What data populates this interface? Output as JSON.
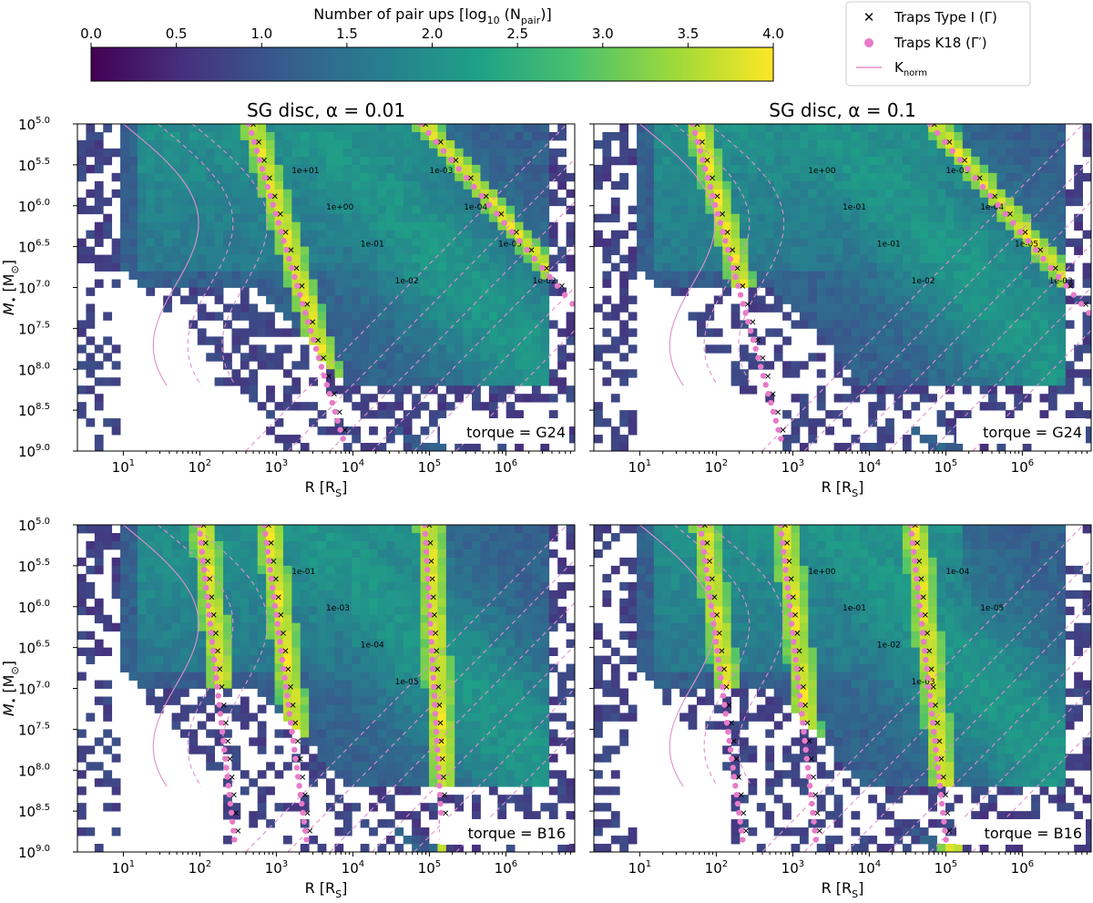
{
  "colorbar": {
    "label": "Number of pair ups [log10 (Npair)]",
    "label_prefix": "Number of pair ups [log",
    "label_sub": "10",
    "label_mid": " (N",
    "label_sub2": "pair",
    "label_suffix": ")]",
    "ticks": [
      "0.0",
      "0.5",
      "1.0",
      "1.5",
      "2.0",
      "2.5",
      "3.0",
      "3.5",
      "4.0"
    ],
    "range": [
      0.0,
      4.0
    ],
    "colors": [
      "#440154",
      "#46327e",
      "#365c8d",
      "#277f8e",
      "#1fa187",
      "#4ac16d",
      "#a0da39",
      "#fde725"
    ]
  },
  "legend": {
    "type1_label": "Traps Type I (Γ)",
    "k18_label": "Traps K18 (Γ′)",
    "knorm_label": "K",
    "knorm_sub": "norm",
    "type1_color": "#cc2222",
    "k18_color": "#e77bc8",
    "knorm_color": "#e090cc"
  },
  "axes": {
    "xlabel_main": "R [R",
    "xlabel_sub": "S",
    "xlabel_end": "]",
    "ylabel_main": "M",
    "ylabel_bullet": "•",
    "ylabel_rest": " [M",
    "ylabel_sub": "⊙",
    "ylabel_end": "]",
    "xticks": [
      "10",
      "10",
      "10",
      "10",
      "10",
      "10"
    ],
    "xtick_exps": [
      "1",
      "2",
      "3",
      "4",
      "5",
      "6"
    ],
    "yticks": [
      "10",
      "10",
      "10",
      "10",
      "10",
      "10",
      "10",
      "10",
      "10"
    ],
    "ytick_exps": [
      "5.0",
      "5.5",
      "6.0",
      "6.5",
      "7.0",
      "7.5",
      "8.0",
      "8.5",
      "9.0"
    ]
  },
  "chart_data": [
    {
      "type": "heatmap",
      "title_prefix": "SG disc, α = ",
      "alpha": "0.01",
      "torque_label": "torque = G24",
      "x_log_range": [
        0.4,
        6.9
      ],
      "y_log_range": [
        5.0,
        9.0
      ],
      "ridges": [
        {
          "log_x_at_top": 2.7,
          "slope": 0.32,
          "kind": "type1"
        },
        {
          "log_x_at_top": 4.95,
          "slope": 0.9,
          "kind": "type1"
        }
      ],
      "contour_labels": [
        "1e+01",
        "1e+00",
        "1e-01",
        "1e-02",
        "1e-03",
        "1e-04",
        "1e-05",
        "1e-02"
      ]
    },
    {
      "type": "heatmap",
      "title_prefix": "SG disc, α = ",
      "alpha": "0.1",
      "torque_label": "torque = G24",
      "x_log_range": [
        0.4,
        6.9
      ],
      "y_log_range": [
        5.0,
        9.0
      ],
      "ridges": [
        {
          "log_x_at_top": 1.75,
          "slope": 0.3,
          "kind": "type1"
        },
        {
          "log_x_at_top": 4.85,
          "slope": 0.9,
          "kind": "type1"
        }
      ],
      "contour_labels": [
        "1e+00",
        "1e-01",
        "1e-01",
        "1e-02",
        "1e-03",
        "1e-04",
        "1e-05",
        "1e-03"
      ]
    },
    {
      "type": "heatmap",
      "title_prefix": "",
      "alpha": "",
      "torque_label": "torque = B16",
      "x_log_range": [
        0.4,
        6.9
      ],
      "y_log_range": [
        5.0,
        9.0
      ],
      "ridges": [
        {
          "log_x_at_top": 2.05,
          "slope": 0.1,
          "kind": "type1"
        },
        {
          "log_x_at_top": 2.9,
          "slope": 0.12,
          "kind": "type1"
        },
        {
          "log_x_at_top": 5.0,
          "slope": 0.05,
          "kind": "type1"
        }
      ],
      "contour_labels": [
        "1e-01",
        "1e-03",
        "1e-04",
        "1e-05"
      ]
    },
    {
      "type": "heatmap",
      "title_prefix": "",
      "alpha": "",
      "torque_label": "torque = B16",
      "x_log_range": [
        0.4,
        6.9
      ],
      "y_log_range": [
        5.0,
        9.0
      ],
      "ridges": [
        {
          "log_x_at_top": 1.85,
          "slope": 0.12,
          "kind": "type1"
        },
        {
          "log_x_at_top": 2.9,
          "slope": 0.1,
          "kind": "type1"
        },
        {
          "log_x_at_top": 4.6,
          "slope": 0.1,
          "kind": "type1"
        }
      ],
      "contour_labels": [
        "1e+00",
        "1e-01",
        "1e-02",
        "1e-03",
        "1e-04",
        "1e-05"
      ]
    }
  ]
}
